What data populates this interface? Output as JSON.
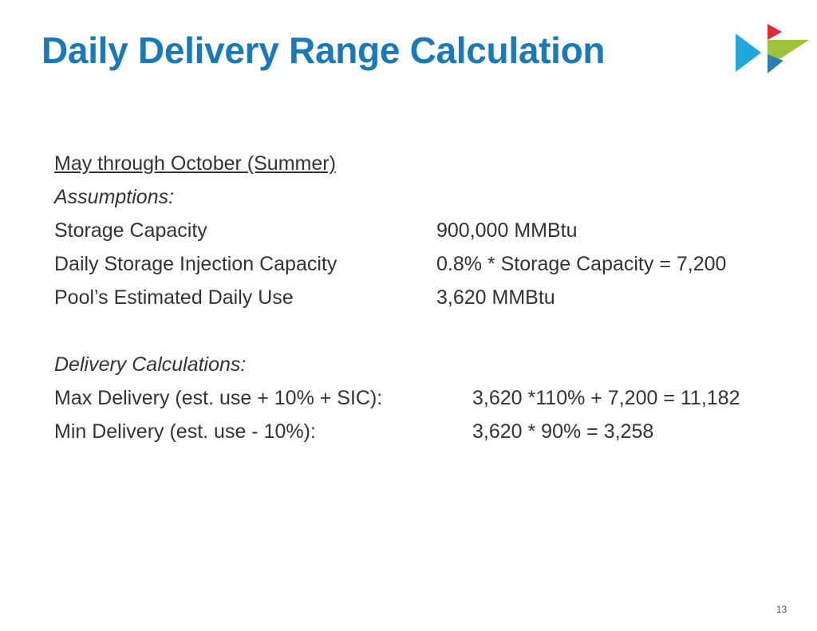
{
  "title": "Daily Delivery Range Calculation",
  "colors": {
    "title": "#1a7ab8",
    "logo_blue": "#1fa6dc",
    "logo_red": "#e02a3a",
    "logo_green": "#9ec33b",
    "logo_teal": "#2b7fb0"
  },
  "logo_icon": "brand-arrows-icon",
  "section_heading": "May through October (Summer)",
  "assumptions": {
    "label": "Assumptions:",
    "rows": [
      {
        "label": "Storage Capacity",
        "value": "900,000 MMBtu"
      },
      {
        "label": "Daily Storage Injection Capacity",
        "value": "0.8% * Storage Capacity = 7,200"
      },
      {
        "label": "Pool’s Estimated Daily Use",
        "value": "3,620 MMBtu"
      }
    ]
  },
  "delivery": {
    "label": "Delivery Calculations:",
    "rows": [
      {
        "label": "Max Delivery (est. use + 10% + SIC):",
        "value": "3,620 *110% + 7,200 = 11,182"
      },
      {
        "label": "Min Delivery (est. use - 10%):",
        "value": "3,620 * 90% = 3,258"
      }
    ]
  },
  "page_number": "13"
}
